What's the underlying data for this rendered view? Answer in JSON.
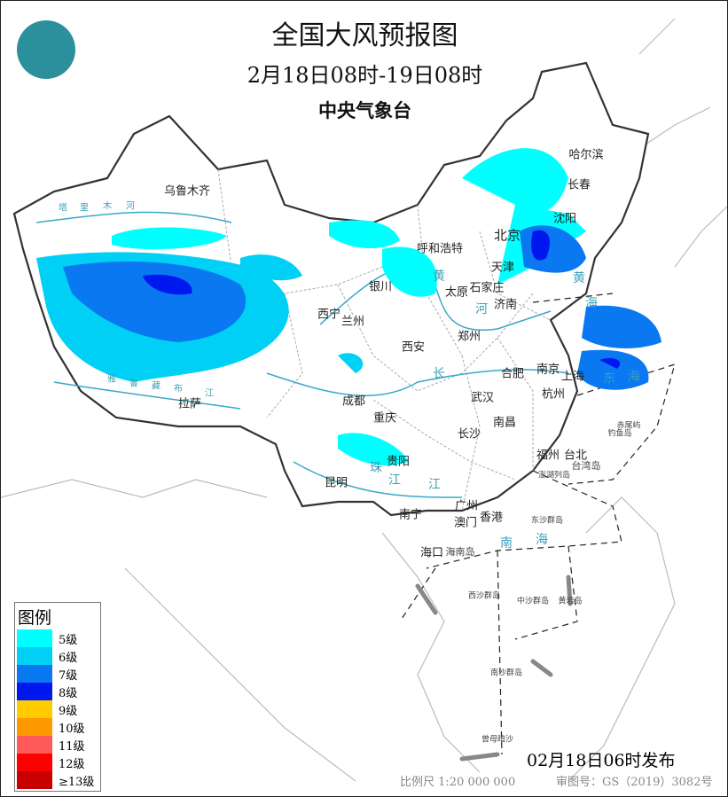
{
  "header": {
    "title": "全国大风预报图",
    "period": "2月18日08时-19日08时",
    "issuer": "中央气象台"
  },
  "logo": {
    "icon": "cma-logo"
  },
  "cities": [
    {
      "name": "乌鲁木齐"
    },
    {
      "name": "哈尔滨"
    },
    {
      "name": "长春"
    },
    {
      "name": "沈阳"
    },
    {
      "name": "北京"
    },
    {
      "name": "呼和浩特"
    },
    {
      "name": "天津"
    },
    {
      "name": "银川"
    },
    {
      "name": "太原"
    },
    {
      "name": "石家庄"
    },
    {
      "name": "济南"
    },
    {
      "name": "西宁"
    },
    {
      "name": "兰州"
    },
    {
      "name": "郑州"
    },
    {
      "name": "西安"
    },
    {
      "name": "合肥"
    },
    {
      "name": "南京"
    },
    {
      "name": "上海"
    },
    {
      "name": "杭州"
    },
    {
      "name": "武汉"
    },
    {
      "name": "成都"
    },
    {
      "name": "重庆"
    },
    {
      "name": "南昌"
    },
    {
      "name": "长沙"
    },
    {
      "name": "拉萨"
    },
    {
      "name": "贵阳"
    },
    {
      "name": "福州"
    },
    {
      "name": "台北"
    },
    {
      "name": "昆明"
    },
    {
      "name": "南宁"
    },
    {
      "name": "广州"
    },
    {
      "name": "澳门"
    },
    {
      "name": "香港"
    },
    {
      "name": "海口"
    }
  ],
  "islands": [
    "台湾岛",
    "海南岛",
    "赤尾屿",
    "钓鱼岛",
    "澎湖列岛",
    "东沙群岛",
    "西沙群岛",
    "中沙群岛",
    "黄岩岛",
    "南沙群岛",
    "曾母暗沙"
  ],
  "water_labels": [
    "东",
    "海",
    "南",
    "海",
    "黄",
    "海",
    "黄",
    "河",
    "长",
    "江",
    "珠",
    "江",
    "塔",
    "里",
    "木",
    "河",
    "雅",
    "鲁",
    "藏",
    "布",
    "江"
  ],
  "legend": {
    "title": "图例",
    "items": [
      {
        "label": "5级",
        "color": "#00ffff"
      },
      {
        "label": "6级",
        "color": "#00d0f5"
      },
      {
        "label": "7级",
        "color": "#0a78f0"
      },
      {
        "label": "8级",
        "color": "#0018f0"
      },
      {
        "label": "9级",
        "color": "#ffcc00"
      },
      {
        "label": "10级",
        "color": "#ff9900"
      },
      {
        "label": "11级",
        "color": "#ff5a5a"
      },
      {
        "label": "12级",
        "color": "#ff0000"
      },
      {
        "label": "≥13级",
        "color": "#c80000"
      }
    ]
  },
  "footer": {
    "issued": "02月18日06时发布",
    "scale": "比例尺 1:20 000 000",
    "review_no": "审图号：GS（2019）3082号"
  }
}
